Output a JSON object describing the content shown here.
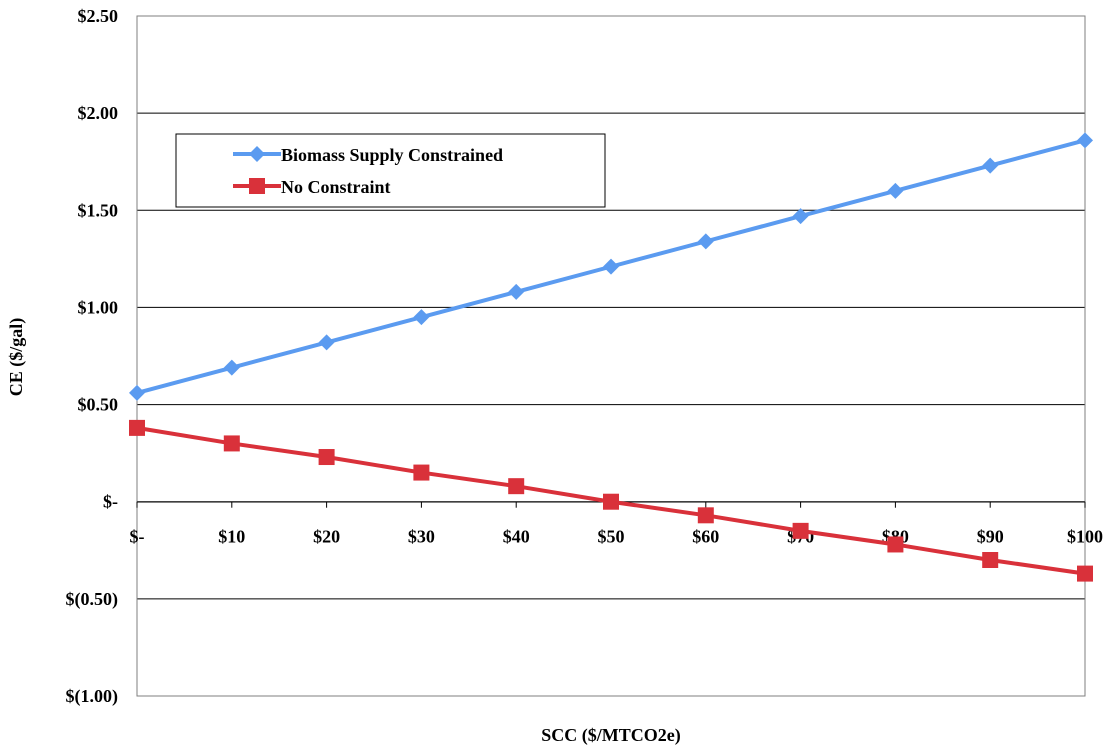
{
  "chart_data": {
    "type": "line",
    "title": "",
    "xlabel": "SCC ($/MTCO2e)",
    "ylabel": "CE ($/gal)",
    "categories": [
      "$-",
      "$10",
      "$20",
      "$30",
      "$40",
      "$50",
      "$60",
      "$70",
      "$80",
      "$90",
      "$100"
    ],
    "x": [
      0,
      10,
      20,
      30,
      40,
      50,
      60,
      70,
      80,
      90,
      100
    ],
    "ylim": [
      -1.0,
      2.5
    ],
    "y_ticks": [
      2.5,
      2.0,
      1.5,
      1.0,
      0.5,
      0,
      -0.5,
      -1.0
    ],
    "y_tick_labels": [
      "$2.50",
      "$2.00",
      "$1.50",
      "$1.00",
      "$0.50",
      "$-",
      "$(0.50)",
      "$(1.00)"
    ],
    "grid": "horizontal",
    "legend_position": "upper-left",
    "series": [
      {
        "name": "Biomass Supply Constrained",
        "color": "#5b9bf0",
        "marker": "diamond",
        "values": [
          0.56,
          0.69,
          0.82,
          0.95,
          1.08,
          1.21,
          1.34,
          1.47,
          1.6,
          1.73,
          1.86
        ]
      },
      {
        "name": "No Constraint",
        "color": "#d9313a",
        "marker": "square",
        "values": [
          0.38,
          0.3,
          0.23,
          0.15,
          0.08,
          0.0,
          -0.07,
          -0.15,
          -0.22,
          -0.3,
          -0.37
        ]
      }
    ]
  }
}
